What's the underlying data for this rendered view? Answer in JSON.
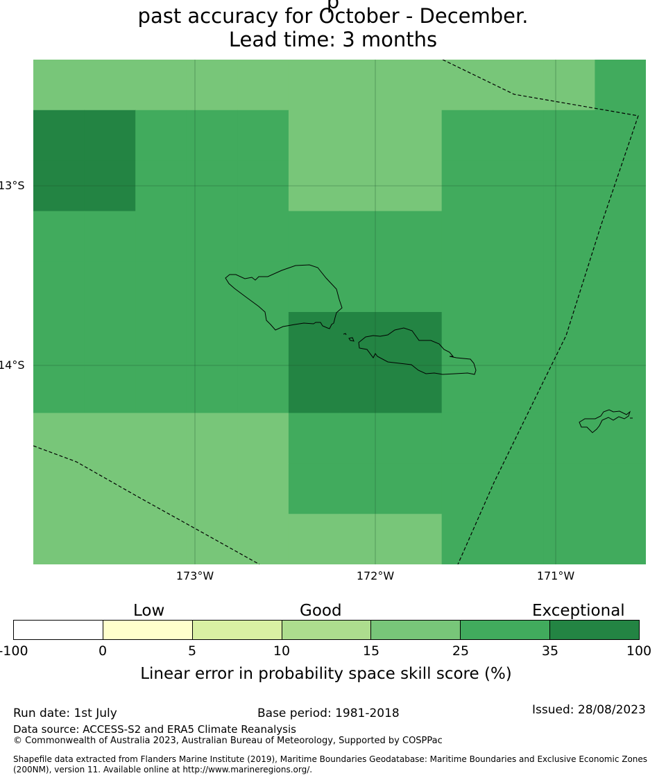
{
  "title": {
    "line1": "p",
    "line2": "past accuracy for October - December.",
    "line3": "Lead time: 3 months"
  },
  "map": {
    "lat_labels": [
      "13°S",
      "14°S"
    ],
    "lon_labels": [
      "173°W",
      "172°W",
      "171°W"
    ],
    "grid_values": [
      [
        25,
        25,
        25,
        25,
        25,
        25,
        25,
        25,
        25,
        25,
        25,
        35
      ],
      [
        100,
        100,
        35,
        35,
        35,
        25,
        25,
        25,
        35,
        35,
        35,
        35
      ],
      [
        100,
        100,
        35,
        35,
        35,
        25,
        25,
        25,
        35,
        35,
        35,
        35
      ],
      [
        35,
        35,
        35,
        35,
        35,
        35,
        35,
        35,
        35,
        35,
        35,
        35
      ],
      [
        35,
        35,
        35,
        35,
        35,
        35,
        35,
        35,
        35,
        35,
        35,
        35
      ],
      [
        35,
        35,
        35,
        35,
        35,
        100,
        100,
        100,
        35,
        35,
        35,
        35
      ],
      [
        35,
        35,
        35,
        35,
        35,
        100,
        100,
        100,
        35,
        35,
        35,
        35
      ],
      [
        25,
        25,
        25,
        25,
        25,
        35,
        35,
        35,
        35,
        35,
        35,
        35
      ],
      [
        25,
        25,
        25,
        25,
        25,
        35,
        35,
        35,
        35,
        35,
        35,
        35
      ],
      [
        25,
        25,
        25,
        25,
        25,
        25,
        25,
        25,
        35,
        35,
        35,
        35
      ]
    ],
    "boundary_style": "dashed",
    "gridlines": true
  },
  "legend": {
    "categories": [
      "Low",
      "Good",
      "Exceptional"
    ],
    "ticks": [
      "-100",
      "0",
      "5",
      "10",
      "15",
      "25",
      "35",
      "100"
    ],
    "colors": [
      "#ffffff",
      "#ffffcc",
      "#d9f0a3",
      "#addd8e",
      "#78c679",
      "#41ab5d",
      "#238443"
    ],
    "label": "Linear error in probability space skill score (%)"
  },
  "footer": {
    "run_date": "Run date: 1st July",
    "base_period": "Base period: 1981-2018",
    "issued": "Issued: 28/08/2023",
    "data_source": "Data source: ACCESS-S2 and ERA5 Climate Reanalysis",
    "copyright": "© Commonwealth of Australia 2023, Australian Bureau of Meteorology, Supported by COSPPac",
    "shapefile": "Shapefile data extracted from Flanders Marine Institute (2019), Maritime Boundaries Geodatabase: Maritime Boundaries and Exclusive Economic Zones (200NM), version 11. Available online at http://www.marineregions.org/."
  }
}
